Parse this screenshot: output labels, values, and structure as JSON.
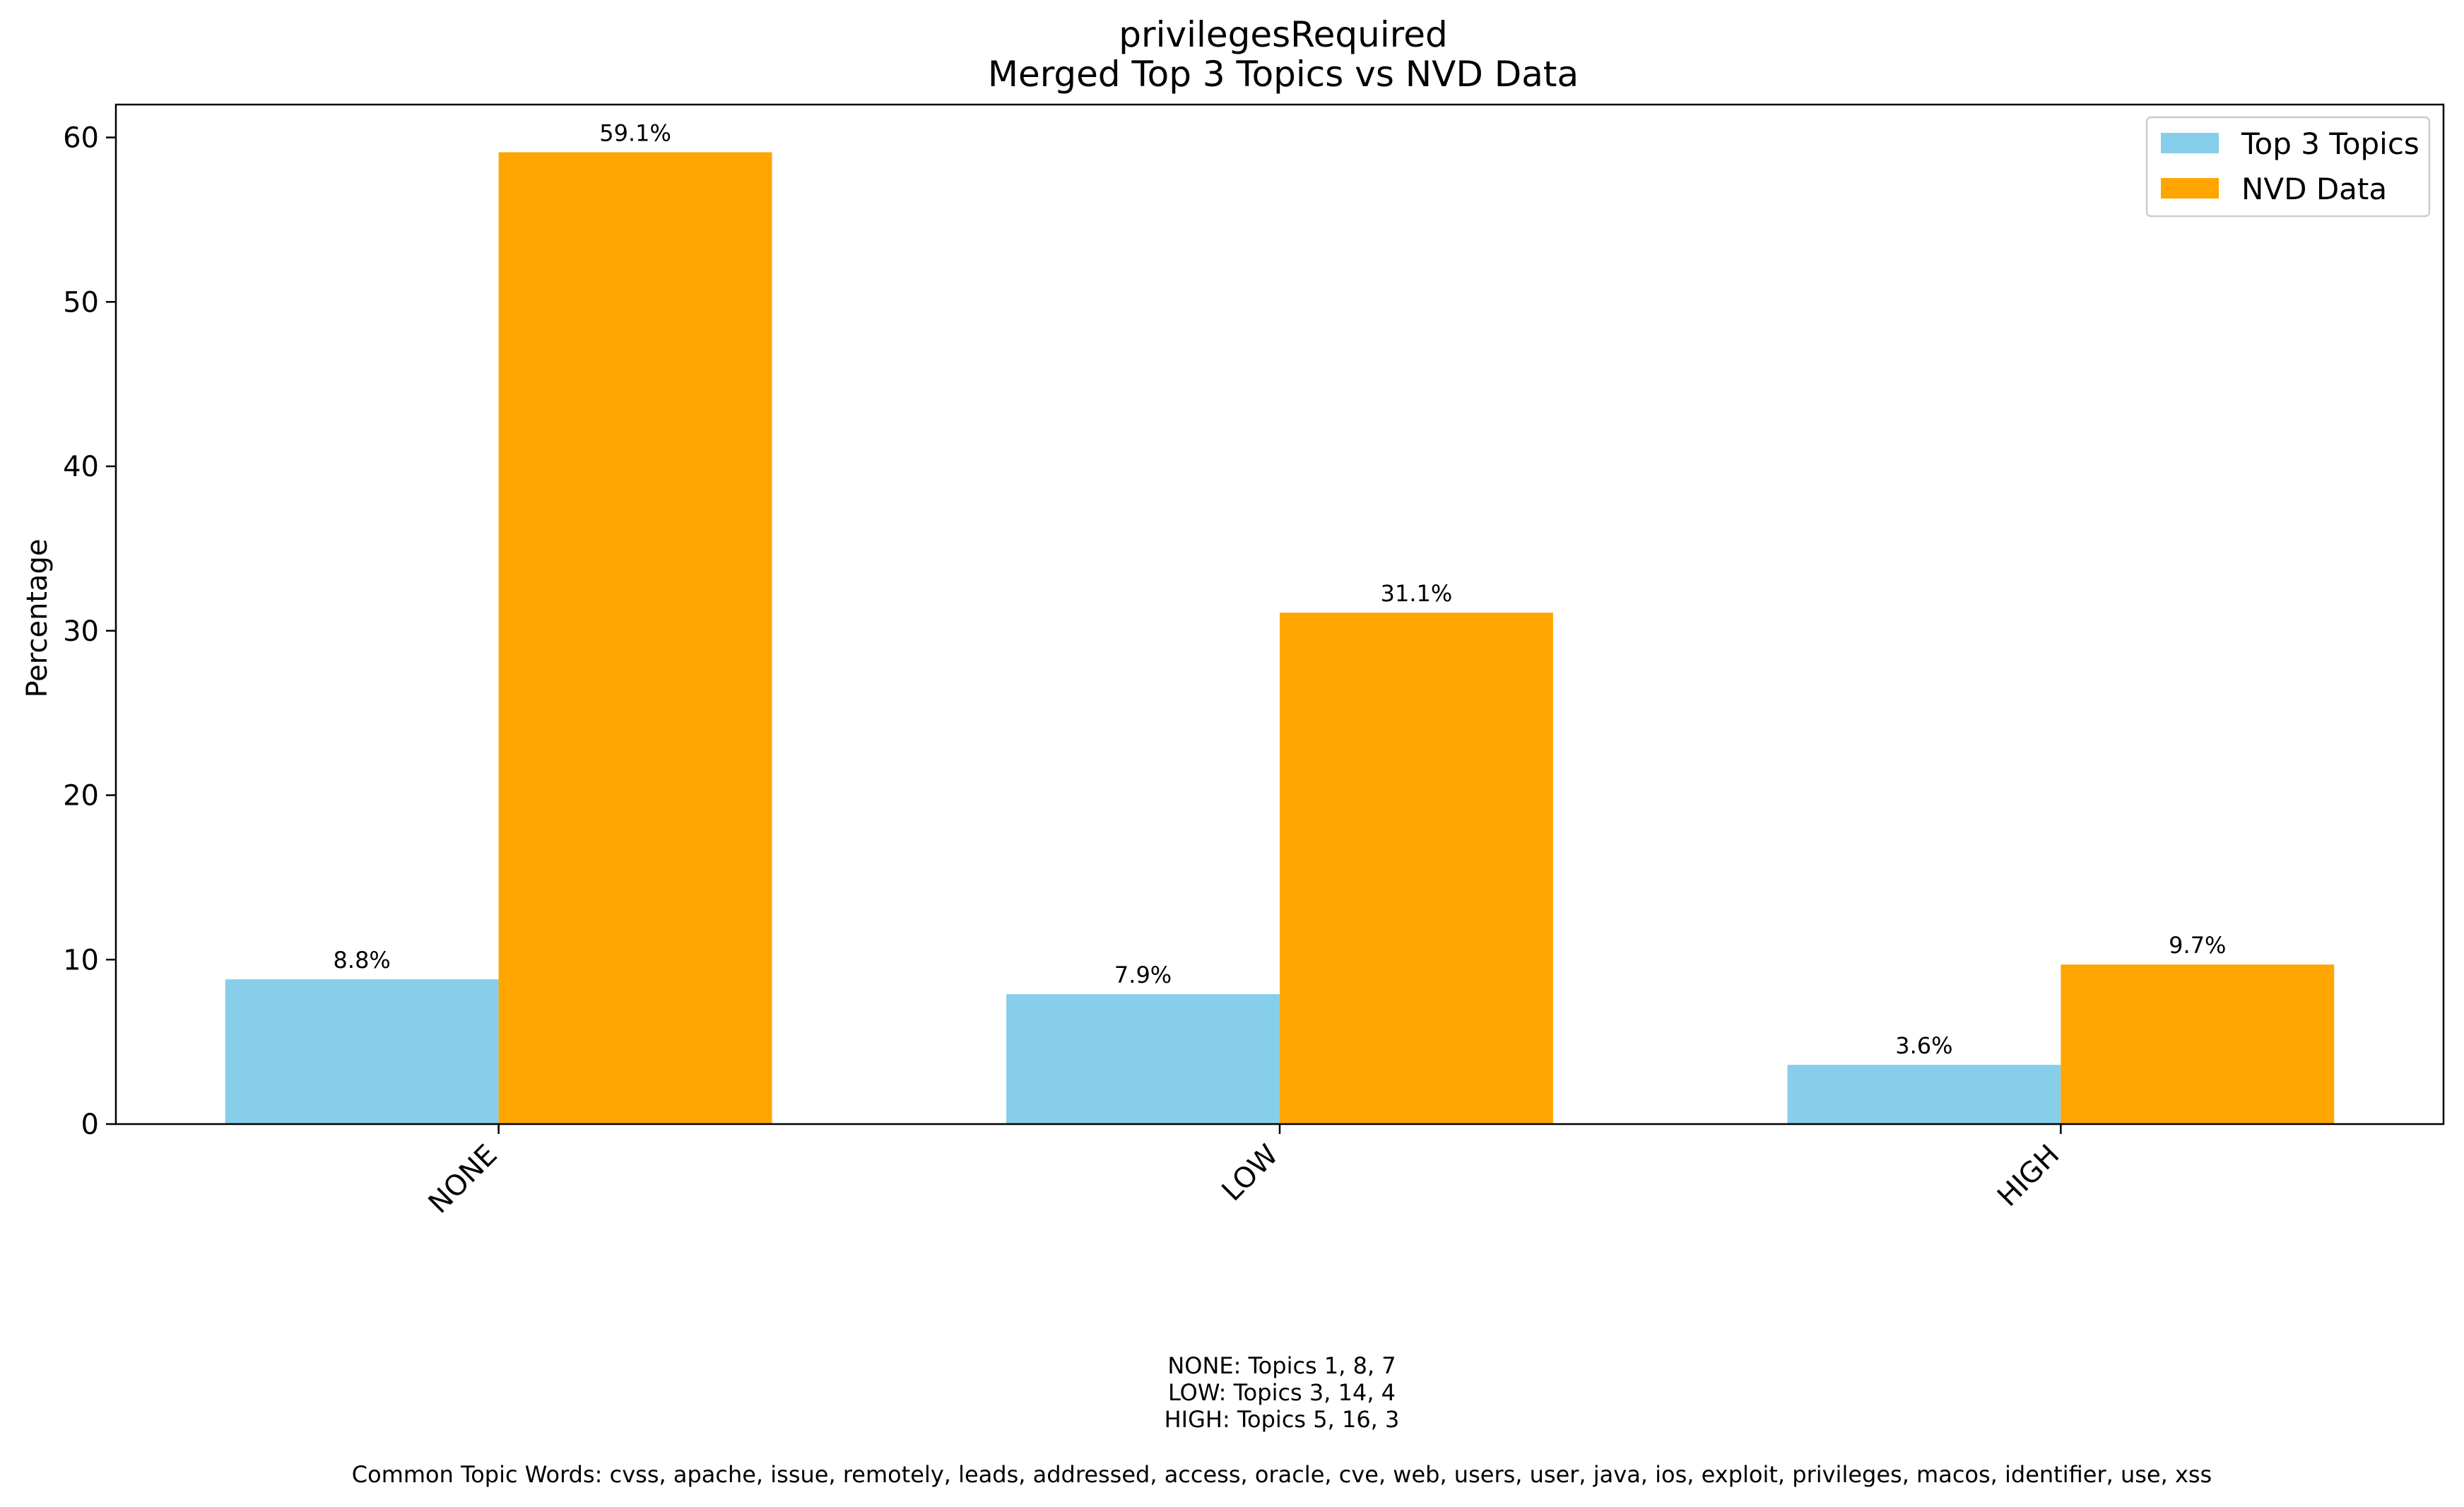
{
  "chart_data": {
    "type": "bar",
    "title": "privilegesRequired",
    "subtitle": "Merged Top 3 Topics vs NVD Data",
    "xlabel": "",
    "ylabel": "Percentage",
    "categories": [
      "NONE",
      "LOW",
      "HIGH"
    ],
    "series": [
      {
        "name": "Top 3 Topics",
        "color": "#87CEEB",
        "values": [
          8.8,
          7.9,
          3.6
        ],
        "labels": [
          "8.8%",
          "7.9%",
          "3.6%"
        ]
      },
      {
        "name": "NVD Data",
        "color": "#FFA500",
        "values": [
          59.1,
          31.1,
          9.7
        ],
        "labels": [
          "59.1%",
          "31.1%",
          "9.7%"
        ]
      }
    ],
    "ylim": [
      0,
      62
    ],
    "yticks": [
      0,
      10,
      20,
      30,
      40,
      50,
      60
    ],
    "ytick_labels": [
      "0",
      "10",
      "20",
      "30",
      "40",
      "50",
      "60"
    ],
    "grid": false,
    "legend_position": "top-right"
  },
  "footnotes": {
    "topic_lines": [
      "NONE: Topics 1, 8, 7",
      "LOW: Topics 3, 14, 4",
      "HIGH: Topics 5, 16, 3"
    ],
    "common_words": "Common Topic Words:  cvss,  apache,  issue,  remotely,  leads,  addressed,  access,  oracle,  cve,  web,  users,  user,  java,  ios,  exploit,  privileges,  macos,  identifier,  use,  xss"
  }
}
